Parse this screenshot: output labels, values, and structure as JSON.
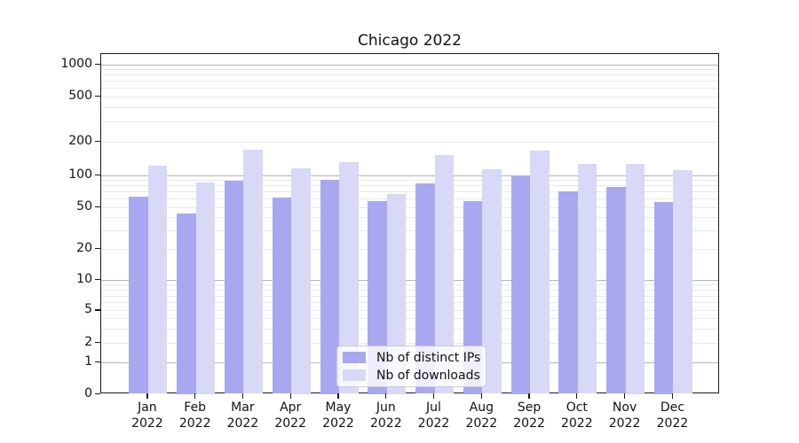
{
  "title": "Chicago 2022",
  "legend": {
    "items": [
      {
        "label": "Nb of distinct IPs",
        "color": "#a8a8f0"
      },
      {
        "label": "Nb of downloads",
        "color": "#d8d8f7"
      }
    ]
  },
  "colors": {
    "series_dark": "#a8a8f0",
    "series_light": "#d8d8f7",
    "grid_major": "#b4b4b4",
    "grid_minor": "#e9e9e9",
    "spine": "#1a1a1a",
    "background": "#ffffff"
  },
  "chart_data": {
    "type": "bar",
    "title": "Chicago 2022",
    "categories": [
      "Jan 2022",
      "Feb 2022",
      "Mar 2022",
      "Apr 2022",
      "May 2022",
      "Jun 2022",
      "Jul 2022",
      "Aug 2022",
      "Sep 2022",
      "Oct 2022",
      "Nov 2022",
      "Dec 2022"
    ],
    "series": [
      {
        "name": "Nb of distinct IPs",
        "color": "#a8a8f0",
        "values": [
          63,
          44,
          88,
          62,
          90,
          57,
          84,
          57,
          100,
          70,
          77,
          56
        ]
      },
      {
        "name": "Nb of downloads",
        "color": "#d8d8f7",
        "values": [
          121,
          85,
          168,
          116,
          130,
          67,
          151,
          113,
          165,
          125,
          126,
          110
        ]
      }
    ],
    "xlabel": "",
    "ylabel": "",
    "yscale": "symlog",
    "ylim": [
      0,
      1270
    ],
    "yticks": [
      {
        "value": 0,
        "label": "0"
      },
      {
        "value": 1,
        "label": "1"
      },
      {
        "value": 2,
        "label": "2"
      },
      {
        "value": 5,
        "label": "5"
      },
      {
        "value": 10,
        "label": "10"
      },
      {
        "value": 20,
        "label": "20"
      },
      {
        "value": 50,
        "label": "50"
      },
      {
        "value": 100,
        "label": "100"
      },
      {
        "value": 200,
        "label": "200"
      },
      {
        "value": 500,
        "label": "500"
      },
      {
        "value": 1000,
        "label": "1000"
      }
    ],
    "grid": true,
    "legend_position": "lower center"
  }
}
